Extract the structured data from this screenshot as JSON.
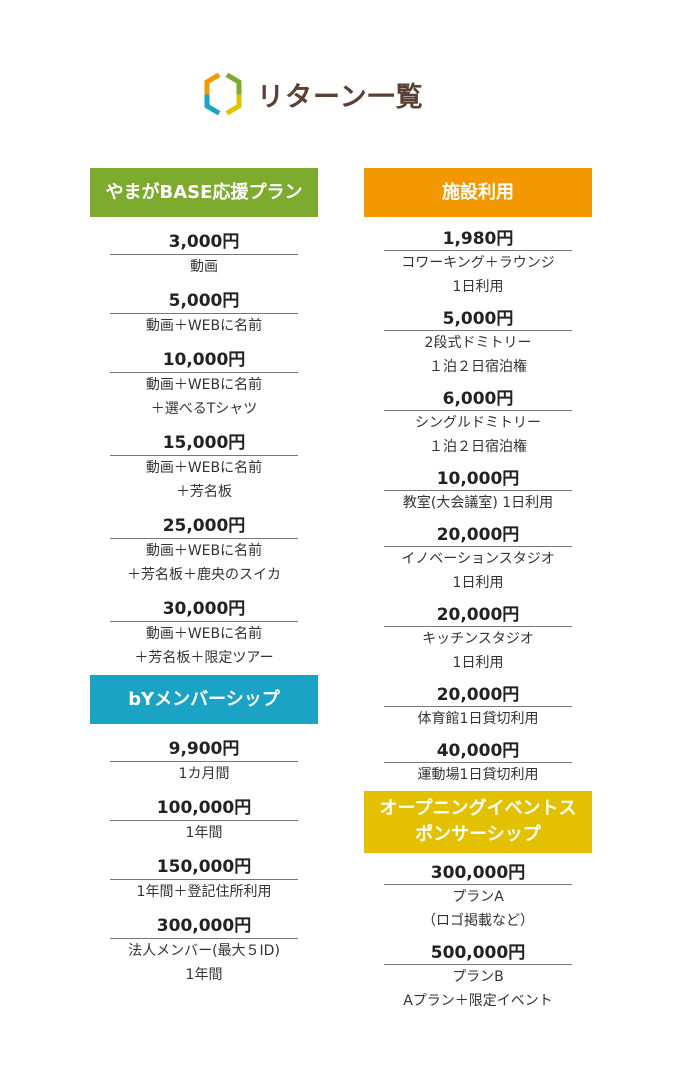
{
  "title": "リターン一覧",
  "colors": {
    "title": "#5a4034",
    "green": "#7cab2e",
    "blue": "#1ba3c6",
    "orange": "#f39800",
    "yellow": "#e3c100"
  },
  "sections": [
    {
      "name": "やまがBASE応援プラン",
      "color": "#7cab2e",
      "items": [
        {
          "price": "3,000円",
          "desc": "動画"
        },
        {
          "price": "5,000円",
          "desc": "動画＋WEBに名前"
        },
        {
          "price": "10,000円",
          "desc": "動画＋WEBに名前\n＋選べるTシャツ"
        },
        {
          "price": "15,000円",
          "desc": "動画＋WEBに名前\n＋芳名板"
        },
        {
          "price": "25,000円",
          "desc": "動画＋WEBに名前\n＋芳名板＋鹿央のスイカ"
        },
        {
          "price": "30,000円",
          "desc": "動画＋WEBに名前\n＋芳名板＋限定ツアー"
        }
      ]
    },
    {
      "name": "bYメンバーシップ",
      "color": "#1ba3c6",
      "items": [
        {
          "price": "9,900円",
          "desc": "1カ月間"
        },
        {
          "price": "100,000円",
          "desc": "1年間"
        },
        {
          "price": "150,000円",
          "desc": "1年間＋登記住所利用"
        },
        {
          "price": "300,000円",
          "desc": "法人メンバー(最大５ID)\n1年間"
        }
      ]
    },
    {
      "name": "施設利用",
      "color": "#f39800",
      "items": [
        {
          "price": "1,980円",
          "desc": "コワーキング＋ラウンジ\n1日利用"
        },
        {
          "price": "5,000円",
          "desc": "2段式ドミトリー\n１泊２日宿泊権"
        },
        {
          "price": "6,000円",
          "desc": "シングルドミトリー\n１泊２日宿泊権"
        },
        {
          "price": "10,000円",
          "desc": "教室(大会議室) 1日利用"
        },
        {
          "price": "20,000円",
          "desc": "イノベーションスタジオ\n1日利用"
        },
        {
          "price": "20,000円",
          "desc": "キッチンスタジオ\n1日利用"
        },
        {
          "price": "20,000円",
          "desc": "体育館1日貸切利用"
        },
        {
          "price": "40,000円",
          "desc": "運動場1日貸切利用"
        }
      ]
    },
    {
      "name": "オープニングイベントス\nポンサーシップ",
      "color": "#e3c100",
      "items": [
        {
          "price": "300,000円",
          "desc": "プランA\n（ロゴ掲載など）"
        },
        {
          "price": "500,000円",
          "desc": "プランB\nAプラン＋限定イベント"
        }
      ]
    }
  ]
}
